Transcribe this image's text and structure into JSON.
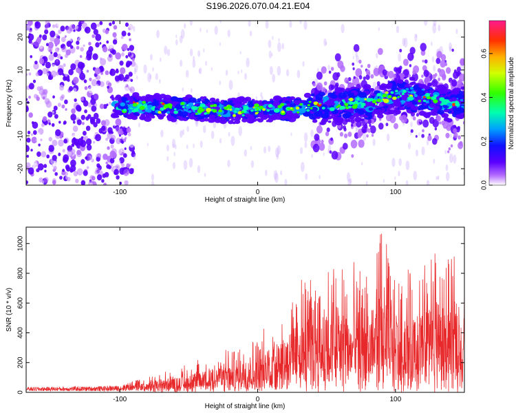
{
  "title": "S196.2026.070.04.21.E04",
  "chart_data": [
    {
      "type": "heatmap",
      "xlabel": "Height of straight line (km)",
      "ylabel": "Frequency (Hz)",
      "xlim": [
        -168,
        150
      ],
      "ylim": [
        -25,
        25
      ],
      "x_ticks": [
        -100,
        0,
        100
      ],
      "y_ticks": [
        -20,
        -10,
        0,
        10,
        20
      ],
      "colorbar": {
        "label": "Normalized spectral amplitude",
        "range": [
          0.0,
          0.75
        ],
        "ticks": [
          "0.0",
          "0.2",
          "0.4",
          "0.6"
        ]
      },
      "trend": {
        "description_points_x": [
          -100,
          -60,
          -20,
          0,
          20,
          40,
          60,
          80,
          100,
          120,
          140
        ],
        "center_frequency_hz": [
          -1.0,
          -1.5,
          -2.5,
          -2.0,
          -2.0,
          -1.0,
          -0.5,
          0.0,
          2.5,
          1.5,
          0.0
        ]
      }
    },
    {
      "type": "line",
      "xlabel": "Height of straight line (km)",
      "ylabel": "SNR (10 * v/v)",
      "xlim": [
        -168,
        150
      ],
      "ylim": [
        0,
        1110
      ],
      "x_ticks": [
        -100,
        0,
        100
      ],
      "y_ticks": [
        0,
        200,
        400,
        600,
        800,
        1000
      ],
      "series": [
        {
          "name": "SNR",
          "color": "#e8292b",
          "envelope_x": [
            -168,
            -120,
            -100,
            -80,
            -60,
            -40,
            -20,
            0,
            20,
            40,
            60,
            80,
            90,
            100,
            120,
            130,
            140,
            150
          ],
          "envelope_max": [
            35,
            40,
            45,
            110,
            160,
            230,
            300,
            380,
            620,
            860,
            900,
            860,
            1105,
            800,
            880,
            1010,
            900,
            950
          ]
        }
      ]
    }
  ]
}
